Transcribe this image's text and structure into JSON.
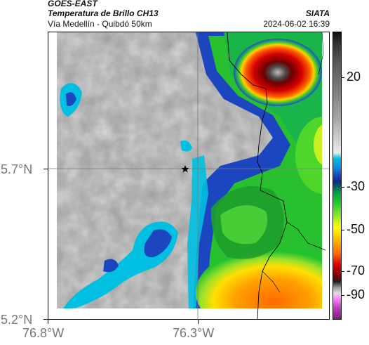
{
  "header": {
    "title": "GOES-EAST",
    "subtitle": "Temperatura de Brillo CH13",
    "organization": "SIATA",
    "location": "Vía Medellín - Quibdó 50km",
    "timestamp": "2024-06-02 16:39"
  },
  "map": {
    "x_ticks": [
      "76.8°W",
      "76.3°W"
    ],
    "y_ticks": [
      "5.7°N",
      "5.2°N"
    ],
    "marker": "star",
    "crosshair": true
  },
  "colorbar": {
    "tick_labels": [
      "20",
      "-30",
      "-50",
      "-70",
      "-90"
    ],
    "palette": {
      "warm_gray": "#a6a6a6",
      "cyan": "#00bfe0",
      "blue": "#1b46c0",
      "green": "#29d129",
      "yellow": "#ffff00",
      "orange": "#ff6a00",
      "red": "#e00000",
      "magenta": "#c040c0"
    }
  }
}
